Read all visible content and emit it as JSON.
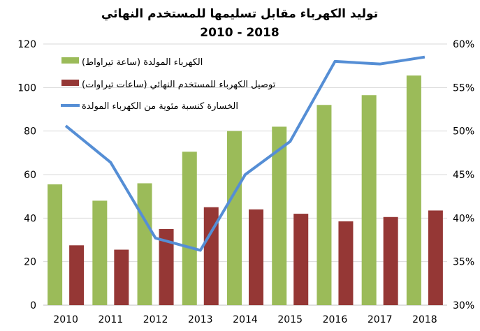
{
  "chart_data": {
    "type": "bar",
    "title": "توليد الكهرباء مقابل تسليمها للمستخدم النهائي",
    "subtitle": "2010 - 2018",
    "categories": [
      "2010",
      "2011",
      "2012",
      "2013",
      "2014",
      "2015",
      "2016",
      "2017",
      "2018"
    ],
    "ylim": [
      0,
      120
    ],
    "yticks": [
      "0",
      "20",
      "40",
      "60",
      "80",
      "100",
      "120"
    ],
    "y2lim": [
      30,
      60
    ],
    "y2ticks": [
      "30%",
      "35%",
      "40%",
      "45%",
      "50%",
      "55%",
      "60%"
    ],
    "grid": true,
    "legend_position": "top-left",
    "series": [
      {
        "name": "الكهرباء المولدة (ساعة تيراواط)",
        "type": "bar",
        "axis": "left",
        "color": "#9BBB59",
        "values": [
          55.5,
          48,
          56,
          70.5,
          80,
          82,
          92,
          96.5,
          105.5
        ]
      },
      {
        "name": "توصيل الكهرباء للمستخدم النهائي (ساعات تيراوات)",
        "type": "bar",
        "axis": "left",
        "color": "#953735",
        "values": [
          27.5,
          25.5,
          35,
          45,
          44,
          42,
          38.5,
          40.5,
          43.5
        ]
      },
      {
        "name": "الخسارة كنسبة مئوية من الكهرباء المولدة",
        "type": "line",
        "axis": "right",
        "color": "#558ED5",
        "values": [
          50.6,
          46.4,
          37.7,
          36.3,
          45,
          48.8,
          58,
          57.7,
          58.5
        ]
      }
    ]
  }
}
